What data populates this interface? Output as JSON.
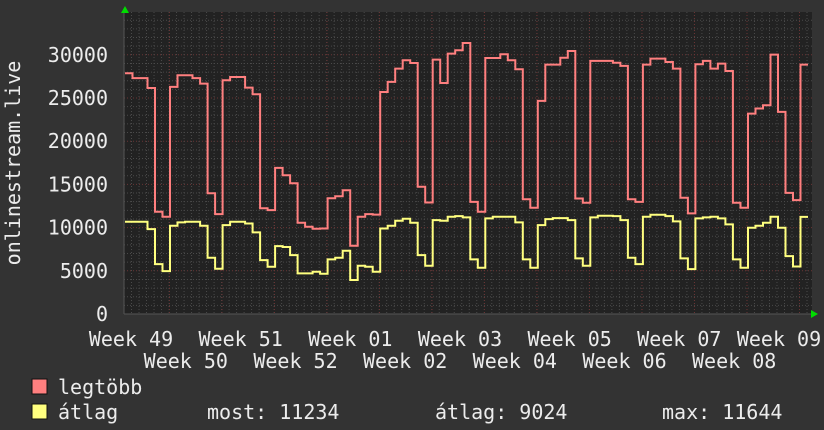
{
  "chart_data": {
    "type": "line",
    "step": true,
    "ylabel": "onlinestream.live",
    "xlabel": "",
    "ylim": [
      0,
      35000
    ],
    "yticks": [
      0,
      5000,
      10000,
      15000,
      20000,
      25000,
      30000
    ],
    "ytick_labels": [
      "0",
      "5000",
      "10000",
      "15000",
      "20000",
      "25000",
      "30000"
    ],
    "xtick_labels": [
      "Week 49",
      "Week 50",
      "Week 51",
      "Week 52",
      "Week 01",
      "Week 02",
      "Week 03",
      "Week 04",
      "Week 05",
      "Week 06",
      "Week 07",
      "Week 08",
      "Week 09"
    ],
    "grid": true,
    "legend_position": "bottom-left",
    "colors": {
      "background": "#333333",
      "plot_background": "#222222",
      "grid_minor": "#4a4a4a",
      "grid_major": "#6a3434",
      "axis_arrow": "#00dd00",
      "text": "#ececec"
    },
    "series": [
      {
        "name": "legtöbb",
        "color": "#ff7f7f",
        "values": [
          27860,
          27300,
          27300,
          26160,
          11830,
          11250,
          26280,
          27630,
          27630,
          27300,
          26670,
          13980,
          11560,
          27050,
          27430,
          27430,
          26200,
          25430,
          12250,
          12020,
          16910,
          16070,
          15140,
          10550,
          10090,
          9860,
          9900,
          13400,
          13640,
          14330,
          7900,
          11250,
          11560,
          11500,
          25700,
          26860,
          28400,
          29360,
          29050,
          14720,
          12900,
          29440,
          26740,
          30140,
          30520,
          31360,
          12980,
          11830,
          29630,
          29630,
          30060,
          29360,
          28320,
          13290,
          12290,
          24660,
          28860,
          28860,
          29670,
          30440,
          13370,
          12870,
          29290,
          29290,
          29290,
          29090,
          28710,
          13290,
          12980,
          28860,
          29560,
          29560,
          29170,
          28400,
          13450,
          11640,
          28900,
          29290,
          28400,
          28980,
          28130,
          12870,
          12290,
          23200,
          23780,
          24160,
          30020,
          23390,
          14020,
          13180,
          28860
        ]
      },
      {
        "name": "átlag",
        "color": "#ffff7f",
        "values": [
          10670,
          10670,
          10670,
          9830,
          5780,
          4970,
          10210,
          10600,
          10670,
          10670,
          10210,
          6510,
          5240,
          10290,
          10670,
          10670,
          10480,
          9440,
          6240,
          5470,
          7860,
          7750,
          6820,
          4700,
          4700,
          4890,
          4660,
          6320,
          6510,
          7320,
          3930,
          5590,
          5470,
          4890,
          9900,
          10210,
          10790,
          11020,
          10560,
          6820,
          5590,
          10870,
          10790,
          11250,
          11330,
          11180,
          6320,
          5350,
          11060,
          11250,
          11250,
          11250,
          10600,
          6320,
          5350,
          10290,
          10980,
          11100,
          11100,
          10870,
          6430,
          5590,
          11180,
          11370,
          11370,
          11330,
          10870,
          6510,
          5780,
          11250,
          11480,
          11480,
          11330,
          10720,
          6430,
          5200,
          11060,
          11180,
          11250,
          11060,
          10370,
          6320,
          5350,
          9980,
          10210,
          10560,
          11250,
          9980,
          6700,
          5500,
          11234
        ]
      }
    ]
  },
  "legend": {
    "items": [
      {
        "label": "legtöbb",
        "color": "#ff7f7f"
      },
      {
        "label": "átlag",
        "color": "#ffff7f"
      }
    ],
    "stats": {
      "now": "most: 11234",
      "avg": "átlag: 9024",
      "max": "max: 11644"
    }
  }
}
